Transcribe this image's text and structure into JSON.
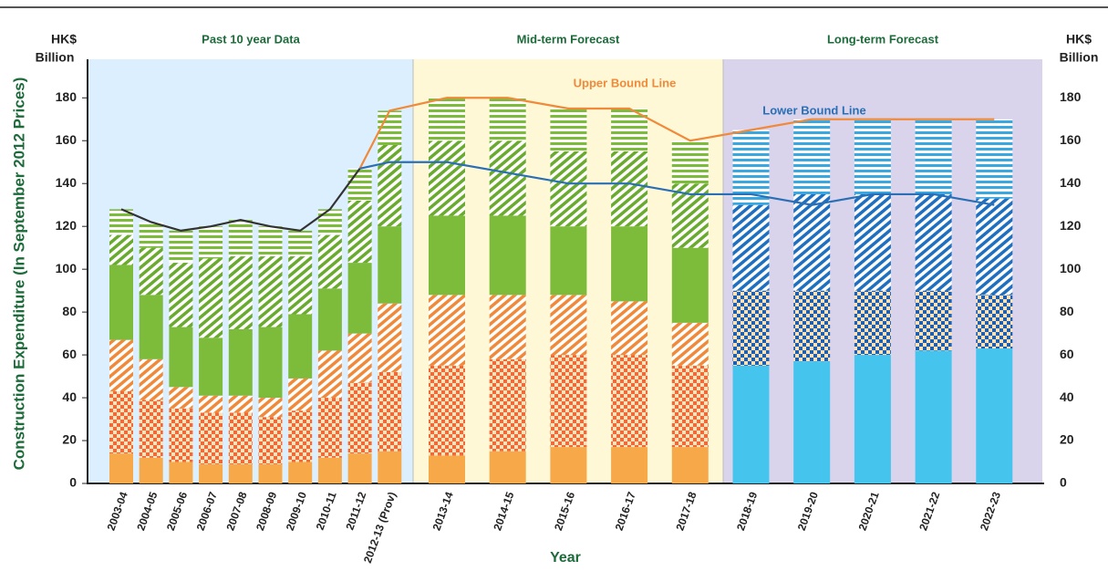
{
  "chart_data": {
    "type": "bar",
    "stacked": true,
    "sections": [
      "Past 10 year Data",
      "Mid-term Forecast",
      "Long-term Forecast"
    ],
    "y_unit": [
      "HK$",
      "Billion"
    ],
    "y_label": "Construction Expenditure (In September 2012 Prices)",
    "x_label": "Year",
    "categories": [
      "2003-04",
      "2004-05",
      "2005-06",
      "2006-07",
      "2007-08",
      "2008-09",
      "2009-10",
      "2010-11",
      "2011-12",
      "2012-13 (Prov)",
      "2013-14",
      "2014-15",
      "2015-16",
      "2016-17",
      "2017-18",
      "2018-19",
      "2019-20",
      "2020-21",
      "2021-22",
      "2022-23"
    ],
    "ylim": [
      0,
      198
    ],
    "yticks": [
      0,
      20,
      40,
      60,
      80,
      100,
      120,
      140,
      160,
      180
    ],
    "series": [
      {
        "color": "#f7a94a",
        "pattern": "solid",
        "values": [
          14,
          12,
          10,
          9,
          9,
          9,
          10,
          12,
          14,
          15,
          13,
          15,
          17,
          17,
          17,
          null,
          null,
          null,
          null,
          null
        ]
      },
      {
        "color": "#ef6a3a",
        "pattern": "check",
        "values": [
          29,
          27,
          25,
          24,
          24,
          22,
          24,
          28,
          33,
          37,
          42,
          43,
          43,
          43,
          38,
          null,
          null,
          null,
          null,
          null
        ]
      },
      {
        "color": "#f08a3a",
        "pattern": "hatch",
        "values": [
          24,
          19,
          10,
          8,
          8,
          9,
          15,
          22,
          23,
          32,
          33,
          30,
          28,
          25,
          20,
          null,
          null,
          null,
          null,
          null
        ]
      },
      {
        "color": "#7dbb3a",
        "pattern": "solid",
        "values": [
          35,
          30,
          28,
          27,
          31,
          33,
          30,
          29,
          33,
          36,
          37,
          37,
          32,
          35,
          35,
          null,
          null,
          null,
          null,
          null
        ]
      },
      {
        "color": "#6aaa2e",
        "pattern": "hatch",
        "values": [
          14,
          22,
          30,
          37,
          34,
          33,
          27,
          25,
          29,
          38,
          35,
          35,
          35,
          35,
          30,
          null,
          null,
          null,
          null,
          null
        ]
      },
      {
        "color": "#7dbb3a",
        "pattern": "stripe",
        "values": [
          12,
          12,
          15,
          15,
          17,
          14,
          12,
          12,
          15,
          16,
          20,
          20,
          20,
          20,
          20,
          null,
          null,
          null,
          null,
          null
        ]
      },
      {
        "color": "#45c4ee",
        "pattern": "solid",
        "values": [
          null,
          null,
          null,
          null,
          null,
          null,
          null,
          null,
          null,
          null,
          null,
          null,
          null,
          null,
          null,
          55,
          57,
          60,
          62,
          63
        ]
      },
      {
        "color": "#1f5fb0",
        "pattern": "check",
        "values": [
          null,
          null,
          null,
          null,
          null,
          null,
          null,
          null,
          null,
          null,
          null,
          null,
          null,
          null,
          null,
          35,
          33,
          30,
          28,
          25
        ]
      },
      {
        "color": "#1f6fc0",
        "pattern": "hatch",
        "values": [
          null,
          null,
          null,
          null,
          null,
          null,
          null,
          null,
          null,
          null,
          null,
          null,
          null,
          null,
          null,
          40,
          45,
          45,
          45,
          45
        ]
      },
      {
        "color": "#3aa8e0",
        "pattern": "stripe",
        "values": [
          null,
          null,
          null,
          null,
          null,
          null,
          null,
          null,
          null,
          null,
          null,
          null,
          null,
          null,
          null,
          35,
          35,
          35,
          35,
          37
        ]
      }
    ],
    "lines": [
      {
        "color": "#333333",
        "values": [
          128,
          122,
          118,
          120,
          123,
          120,
          118,
          128,
          147,
          null,
          null,
          null,
          null,
          null,
          null,
          null,
          null,
          null,
          null,
          null
        ]
      },
      {
        "name": "Upper Bound Line",
        "color": "#f08a3a",
        "values": [
          null,
          null,
          null,
          null,
          null,
          null,
          null,
          null,
          147,
          174,
          180,
          180,
          175,
          175,
          160,
          165,
          170,
          170,
          170,
          170
        ]
      },
      {
        "name": "Lower Bound Line",
        "color": "#2a6fb5",
        "values": [
          null,
          null,
          null,
          null,
          null,
          null,
          null,
          null,
          147,
          150,
          150,
          145,
          140,
          140,
          135,
          135,
          130,
          135,
          135,
          130
        ]
      }
    ]
  }
}
